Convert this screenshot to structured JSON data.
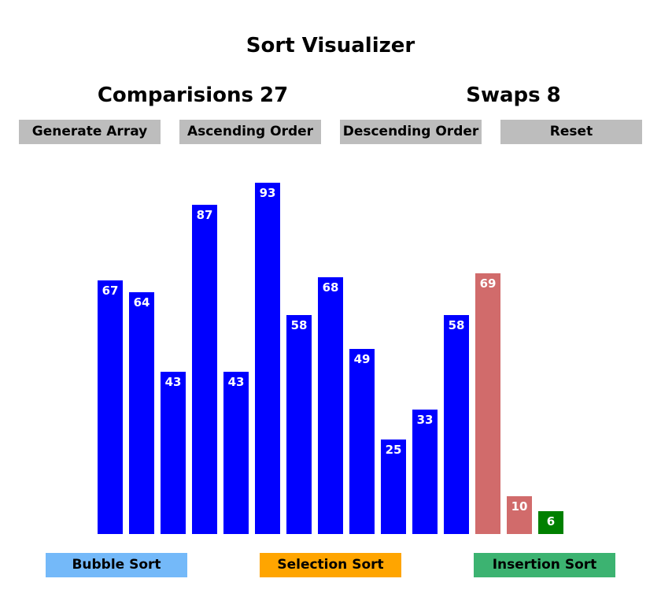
{
  "title": "Sort Visualizer",
  "stats": {
    "comparisons_label": "Comparisions",
    "comparisons_value": "27",
    "swaps_label": "Swaps",
    "swaps_value": "8"
  },
  "controls": {
    "generate": "Generate Array",
    "ascending": "Ascending Order",
    "descending": "Descending Order",
    "reset": "Reset"
  },
  "colors": {
    "default": "#0000ff",
    "comparing": "#d16b6b",
    "sorted": "#008000",
    "bubble_button": "#74b9f9",
    "selection_button": "#ffa500",
    "insertion_button": "#3cb371",
    "control_button": "#bdbdbd"
  },
  "array": [
    {
      "value": 67,
      "state": "default"
    },
    {
      "value": 64,
      "state": "default"
    },
    {
      "value": 43,
      "state": "default"
    },
    {
      "value": 87,
      "state": "default"
    },
    {
      "value": 43,
      "state": "default"
    },
    {
      "value": 93,
      "state": "default"
    },
    {
      "value": 58,
      "state": "default"
    },
    {
      "value": 68,
      "state": "default"
    },
    {
      "value": 49,
      "state": "default"
    },
    {
      "value": 25,
      "state": "default"
    },
    {
      "value": 33,
      "state": "default"
    },
    {
      "value": 58,
      "state": "default"
    },
    {
      "value": 69,
      "state": "comparing"
    },
    {
      "value": 10,
      "state": "comparing"
    },
    {
      "value": 6,
      "state": "sorted"
    }
  ],
  "algorithms": {
    "bubble": "Bubble Sort",
    "selection": "Selection Sort",
    "insertion": "Insertion Sort"
  }
}
